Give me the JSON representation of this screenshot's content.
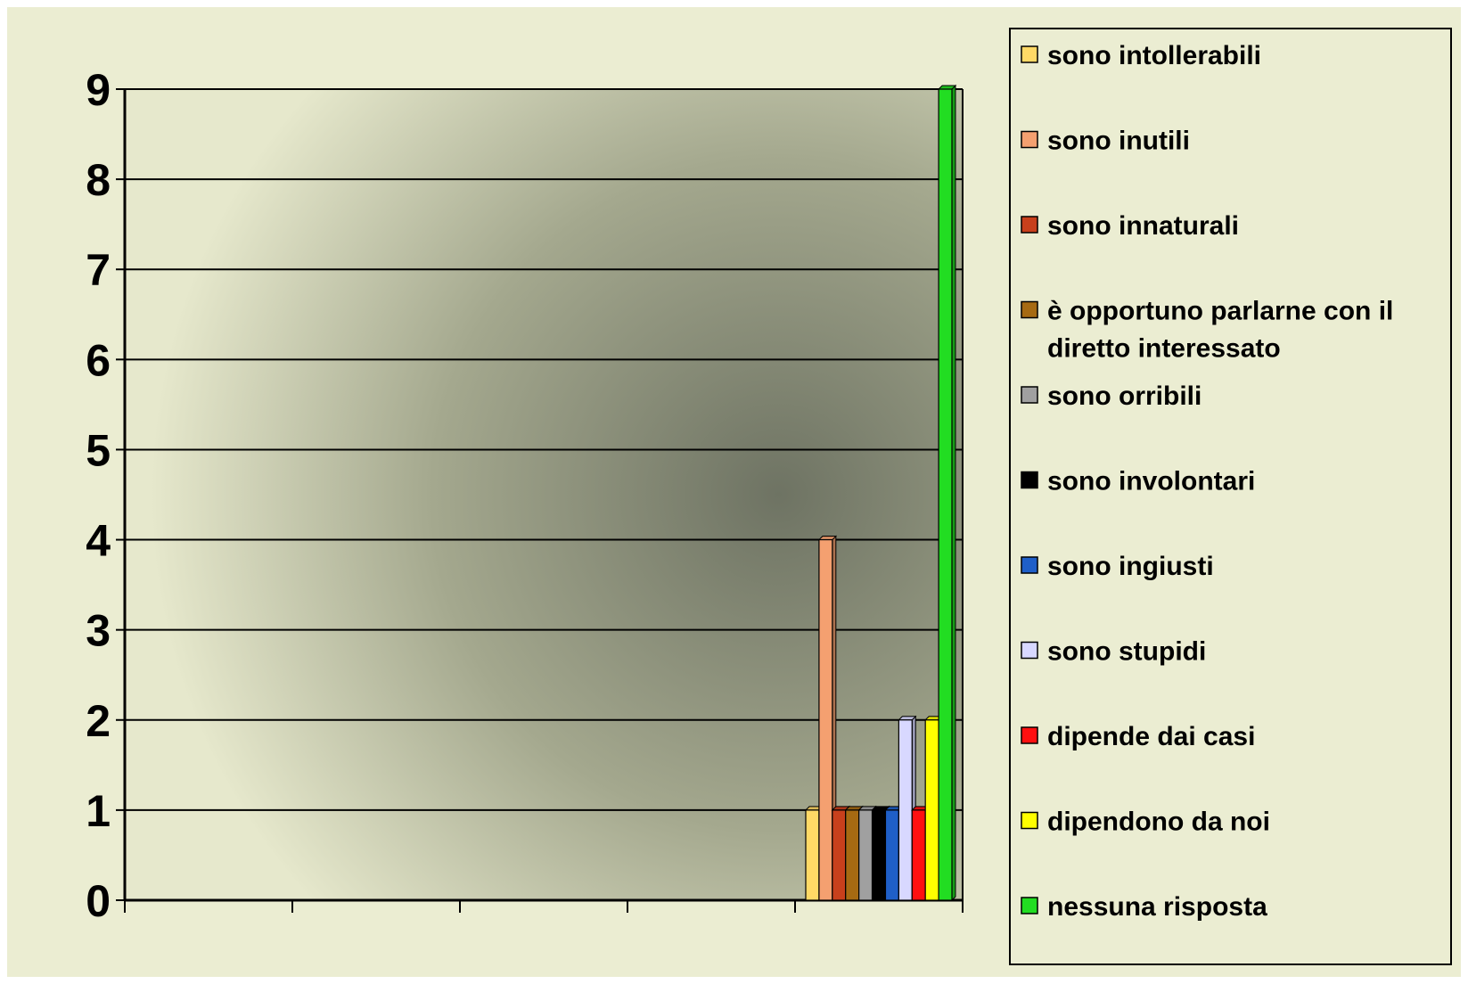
{
  "chart_data": {
    "type": "bar",
    "categories": [
      "",
      "",
      "",
      "",
      ""
    ],
    "ylim": [
      0,
      9
    ],
    "yticks": [
      "0",
      "1",
      "2",
      "3",
      "4",
      "5",
      "6",
      "7",
      "8",
      "9"
    ],
    "grid": true,
    "legend_position": "right",
    "series": [
      {
        "name": "sono intollerabili",
        "values": [
          0,
          0,
          0,
          0,
          1
        ],
        "color": "#FFD966"
      },
      {
        "name": "sono inutili",
        "values": [
          0,
          0,
          0,
          0,
          4
        ],
        "color": "#F4A070"
      },
      {
        "name": "sono innaturali",
        "values": [
          0,
          0,
          0,
          0,
          1
        ],
        "color": "#C8401C"
      },
      {
        "name": "è opportuno parlarne con il diretto interessato",
        "values": [
          0,
          0,
          0,
          0,
          1
        ],
        "color": "#A66A12"
      },
      {
        "name": "sono orribili",
        "values": [
          0,
          0,
          0,
          0,
          1
        ],
        "color": "#A0A0A0"
      },
      {
        "name": "sono involontari",
        "values": [
          0,
          0,
          0,
          0,
          1
        ],
        "color": "#000000"
      },
      {
        "name": "sono ingiusti",
        "values": [
          0,
          0,
          0,
          0,
          1
        ],
        "color": "#1F5FC8"
      },
      {
        "name": "sono stupidi",
        "values": [
          0,
          0,
          0,
          0,
          2
        ],
        "color": "#D8D8FF"
      },
      {
        "name": "dipende dai casi",
        "values": [
          0,
          0,
          0,
          0,
          1
        ],
        "color": "#FF1010"
      },
      {
        "name": "dipendono da noi",
        "values": [
          0,
          0,
          0,
          0,
          2
        ],
        "color": "#FFFF00"
      },
      {
        "name": "nessuna risposta",
        "values": [
          0,
          0,
          0,
          0,
          9
        ],
        "color": "#22DD22"
      }
    ]
  },
  "legend_lines": [
    [
      "sono intollerabili"
    ],
    [
      "sono inutili"
    ],
    [
      "sono innaturali"
    ],
    [
      "è opportuno parlarne con il",
      "diretto interessato"
    ],
    [
      "sono orribili"
    ],
    [
      "sono involontari"
    ],
    [
      "sono ingiusti"
    ],
    [
      "sono stupidi"
    ],
    [
      "dipende dai casi"
    ],
    [
      "dipendono da noi"
    ],
    [
      "nessuna risposta"
    ]
  ],
  "colors": {
    "background": "#EBEDD2",
    "plot_center": "#6E7363",
    "plot_edge": "#E6E8CC",
    "legend_border": "#000000"
  }
}
